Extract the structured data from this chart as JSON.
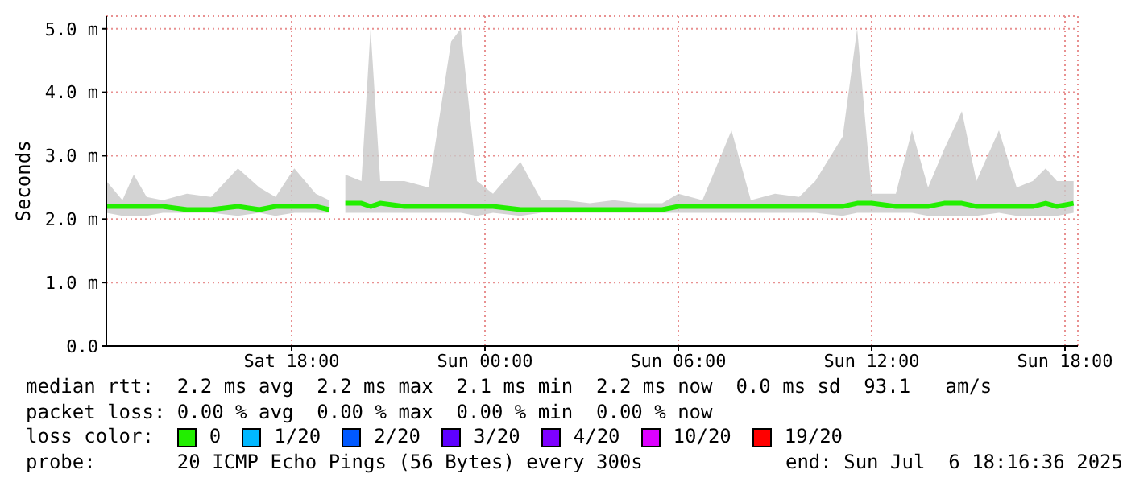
{
  "chart_data": {
    "type": "line",
    "ylabel": "Seconds",
    "legend_title": "loss color:",
    "legend": "bottom",
    "grid": true,
    "xlim": [
      "2025-07-05T12:15",
      "2025-07-06T18:24"
    ],
    "xticks": [
      {
        "value": "2025-07-05T18:00",
        "label": "Sat 18:00"
      },
      {
        "value": "2025-07-06T00:00",
        "label": "Sun 00:00"
      },
      {
        "value": "2025-07-06T06:00",
        "label": "Sun 06:00"
      },
      {
        "value": "2025-07-06T12:00",
        "label": "Sun 12:00"
      },
      {
        "value": "2025-07-06T18:00",
        "label": "Sun 18:00"
      }
    ],
    "ylim": [
      0,
      5.2
    ],
    "yticks": [
      {
        "value": 0,
        "label": "0.0"
      },
      {
        "value": 1,
        "label": "1.0 m"
      },
      {
        "value": 2,
        "label": "2.0 m"
      },
      {
        "value": 3,
        "label": "3.0 m"
      },
      {
        "value": 4,
        "label": "4.0 m"
      },
      {
        "value": 5,
        "label": "5.0 m"
      }
    ],
    "x": [
      "2025-07-05T12:15",
      "2025-07-05T12:45",
      "2025-07-05T13:06",
      "2025-07-05T13:30",
      "2025-07-05T14:00",
      "2025-07-05T14:45",
      "2025-07-05T15:30",
      "2025-07-05T16:20",
      "2025-07-05T17:00",
      "2025-07-05T17:30",
      "2025-07-05T18:05",
      "2025-07-05T18:45",
      "2025-07-05T19:10",
      "2025-07-05T19:20",
      "2025-07-05T19:40",
      "2025-07-05T20:10",
      "2025-07-05T20:27",
      "2025-07-05T20:45",
      "2025-07-05T21:30",
      "2025-07-05T22:15",
      "2025-07-05T22:57",
      "2025-07-05T23:15",
      "2025-07-05T23:45",
      "2025-07-06T00:15",
      "2025-07-06T01:06",
      "2025-07-06T01:45",
      "2025-07-06T02:30",
      "2025-07-06T03:15",
      "2025-07-06T04:00",
      "2025-07-06T04:45",
      "2025-07-06T05:30",
      "2025-07-06T06:00",
      "2025-07-06T06:45",
      "2025-07-06T07:39",
      "2025-07-06T08:15",
      "2025-07-06T09:00",
      "2025-07-06T09:45",
      "2025-07-06T10:15",
      "2025-07-06T11:06",
      "2025-07-06T11:33",
      "2025-07-06T12:00",
      "2025-07-06T12:45",
      "2025-07-06T13:15",
      "2025-07-06T13:45",
      "2025-07-06T14:15",
      "2025-07-06T14:48",
      "2025-07-06T15:15",
      "2025-07-06T15:57",
      "2025-07-06T16:30",
      "2025-07-06T17:00",
      "2025-07-06T17:24",
      "2025-07-06T17:45",
      "2025-07-06T18:16"
    ],
    "series": [
      {
        "name": "0",
        "color": "#22ee00",
        "values": [
          2.2,
          2.2,
          2.2,
          2.2,
          2.2,
          2.15,
          2.15,
          2.2,
          2.15,
          2.2,
          2.2,
          2.2,
          2.15,
          null,
          2.25,
          2.25,
          2.2,
          2.25,
          2.2,
          2.2,
          2.2,
          2.2,
          2.2,
          2.2,
          2.15,
          2.15,
          2.15,
          2.15,
          2.15,
          2.15,
          2.15,
          2.2,
          2.2,
          2.2,
          2.2,
          2.2,
          2.2,
          2.2,
          2.2,
          2.25,
          2.25,
          2.2,
          2.2,
          2.2,
          2.25,
          2.25,
          2.2,
          2.2,
          2.2,
          2.2,
          2.25,
          2.2,
          2.25
        ],
        "lower": [
          2.1,
          2.05,
          2.05,
          2.05,
          2.1,
          2.1,
          2.1,
          2.05,
          2.1,
          2.05,
          2.1,
          2.1,
          2.1,
          null,
          2.1,
          2.1,
          2.1,
          2.1,
          2.1,
          2.1,
          2.1,
          2.1,
          2.05,
          2.1,
          2.05,
          2.1,
          2.1,
          2.1,
          2.1,
          2.1,
          2.1,
          2.1,
          2.1,
          2.1,
          2.1,
          2.1,
          2.1,
          2.1,
          2.05,
          2.1,
          2.1,
          2.1,
          2.1,
          2.05,
          2.05,
          2.05,
          2.05,
          2.1,
          2.05,
          2.05,
          2.05,
          2.05,
          2.1
        ],
        "upper": [
          2.6,
          2.3,
          2.7,
          2.35,
          2.3,
          2.4,
          2.35,
          2.8,
          2.5,
          2.35,
          2.8,
          2.4,
          2.3,
          null,
          2.7,
          2.6,
          5.0,
          2.6,
          2.6,
          2.5,
          4.8,
          5.0,
          2.6,
          2.4,
          2.9,
          2.3,
          2.3,
          2.25,
          2.3,
          2.25,
          2.25,
          2.4,
          2.3,
          3.4,
          2.3,
          2.4,
          2.35,
          2.6,
          3.3,
          5.0,
          2.4,
          2.4,
          3.4,
          2.5,
          3.1,
          3.7,
          2.6,
          3.4,
          2.5,
          2.6,
          2.8,
          2.6,
          2.6
        ]
      },
      {
        "name": "1/20",
        "color": "#00b8ff",
        "values": [
          null,
          null,
          null,
          null,
          null,
          null,
          null,
          null,
          null,
          null,
          null,
          null,
          null,
          null,
          null,
          null,
          null,
          null,
          null,
          null,
          null,
          null,
          null,
          null,
          null,
          null,
          null,
          null,
          null,
          null,
          null,
          null,
          null,
          null,
          null,
          null,
          null,
          null,
          null,
          null,
          null,
          null,
          null,
          null,
          null,
          null,
          null,
          null,
          null,
          null,
          null,
          null,
          null
        ]
      },
      {
        "name": "2/20",
        "color": "#0059ff",
        "values": [
          null,
          null,
          null,
          null,
          null,
          null,
          null,
          null,
          null,
          null,
          null,
          null,
          null,
          null,
          null,
          null,
          null,
          null,
          null,
          null,
          null,
          null,
          null,
          null,
          null,
          null,
          null,
          null,
          null,
          null,
          null,
          null,
          null,
          null,
          null,
          null,
          null,
          null,
          null,
          null,
          null,
          null,
          null,
          null,
          null,
          null,
          null,
          null,
          null,
          null,
          null,
          null,
          null
        ]
      },
      {
        "name": "3/20",
        "color": "#5e00ff",
        "values": [
          null,
          null,
          null,
          null,
          null,
          null,
          null,
          null,
          null,
          null,
          null,
          null,
          null,
          null,
          null,
          null,
          null,
          null,
          null,
          null,
          null,
          null,
          null,
          null,
          null,
          null,
          null,
          null,
          null,
          null,
          null,
          null,
          null,
          null,
          null,
          null,
          null,
          null,
          null,
          null,
          null,
          null,
          null,
          null,
          null,
          null,
          null,
          null,
          null,
          null,
          null,
          null,
          null
        ]
      },
      {
        "name": "4/20",
        "color": "#7e00ff",
        "values": [
          null,
          null,
          null,
          null,
          null,
          null,
          null,
          null,
          null,
          null,
          null,
          null,
          null,
          null,
          null,
          null,
          null,
          null,
          null,
          null,
          null,
          null,
          null,
          null,
          null,
          null,
          null,
          null,
          null,
          null,
          null,
          null,
          null,
          null,
          null,
          null,
          null,
          null,
          null,
          null,
          null,
          null,
          null,
          null,
          null,
          null,
          null,
          null,
          null,
          null,
          null,
          null,
          null
        ]
      },
      {
        "name": "10/20",
        "color": "#dd00ff",
        "values": [
          null,
          null,
          null,
          null,
          null,
          null,
          null,
          null,
          null,
          null,
          null,
          null,
          null,
          null,
          null,
          null,
          null,
          null,
          null,
          null,
          null,
          null,
          null,
          null,
          null,
          null,
          null,
          null,
          null,
          null,
          null,
          null,
          null,
          null,
          null,
          null,
          null,
          null,
          null,
          null,
          null,
          null,
          null,
          null,
          null,
          null,
          null,
          null,
          null,
          null,
          null,
          null,
          null
        ]
      },
      {
        "name": "19/20",
        "color": "#ff0000",
        "values": [
          null,
          null,
          null,
          null,
          null,
          null,
          null,
          null,
          null,
          null,
          null,
          null,
          null,
          null,
          null,
          null,
          null,
          null,
          null,
          null,
          null,
          null,
          null,
          null,
          null,
          null,
          null,
          null,
          null,
          null,
          null,
          null,
          null,
          null,
          null,
          null,
          null,
          null,
          null,
          null,
          null,
          null,
          null,
          null,
          null,
          null,
          null,
          null,
          null,
          null,
          null,
          null,
          null
        ]
      }
    ],
    "annotations": [
      "median rtt:  2.2 ms avg  2.2 ms max  2.1 ms min  2.2 ms now  0.0 ms sd  93.1   am/s",
      "packet loss: 0.00 % avg  0.00 % max  0.00 % min  0.00 % now",
      "probe:       20 ICMP Echo Pings (56 Bytes) every 300s",
      "end: Sun Jul  6 18:16:36 2025"
    ]
  }
}
